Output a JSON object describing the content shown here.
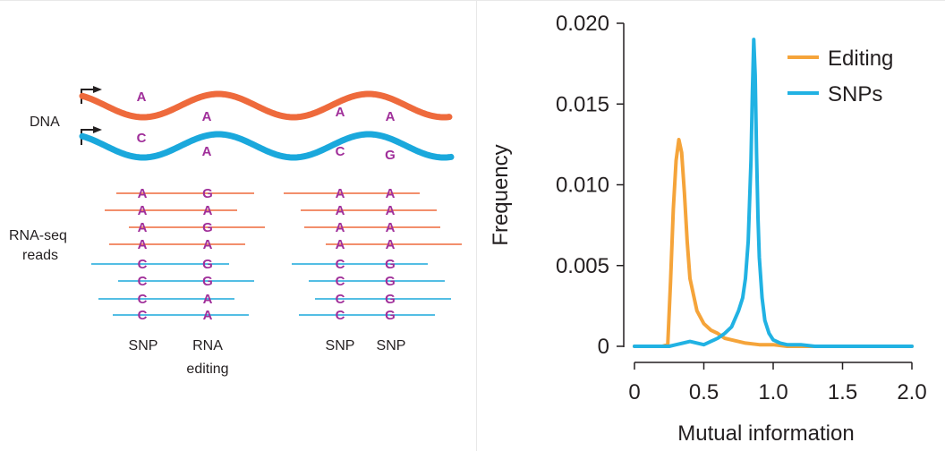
{
  "colors": {
    "orange": "#ee6a3c",
    "blue": "#1aa8dc",
    "purple": "#a02f9a",
    "editing_curve": "#f5a43a",
    "snp_curve": "#21b2e3",
    "text": "#231f20"
  },
  "diagram": {
    "dna_label": "DNA",
    "rnaseq_label_line1": "RNA-seq",
    "rnaseq_label_line2": "reads",
    "strand1_bases": [
      "A",
      "A",
      "A",
      "A"
    ],
    "strand2_bases": [
      "C",
      "A",
      "C",
      "G"
    ],
    "left_group": {
      "col1": [
        "A",
        "A",
        "A",
        "A",
        "C",
        "C",
        "C",
        "C"
      ],
      "col2": [
        "G",
        "A",
        "G",
        "A",
        "G",
        "G",
        "A",
        "A"
      ]
    },
    "right_group": {
      "col1": [
        "A",
        "A",
        "A",
        "A",
        "C",
        "C",
        "C",
        "C"
      ],
      "col2": [
        "A",
        "A",
        "A",
        "A",
        "G",
        "G",
        "G",
        "G"
      ]
    },
    "bottom_labels": {
      "snp1": "SNP",
      "rna_line1": "RNA",
      "rna_line2": "editing",
      "snp2": "SNP",
      "snp3": "SNP"
    }
  },
  "chart_data": {
    "type": "line",
    "title": "",
    "xlabel": "Mutual information",
    "ylabel": "Frequency",
    "xlim": [
      0,
      2.0
    ],
    "ylim": [
      0,
      0.02
    ],
    "xticks": [
      "0",
      "0.5",
      "1.0",
      "1.5",
      "2.0"
    ],
    "yticks": [
      "0",
      "0.005",
      "0.010",
      "0.015",
      "0.020"
    ],
    "legend_position": "top-right",
    "grid": false,
    "series": [
      {
        "name": "Editing",
        "color": "#f5a43a",
        "x": [
          0.0,
          0.2,
          0.24,
          0.26,
          0.28,
          0.3,
          0.32,
          0.34,
          0.36,
          0.38,
          0.4,
          0.45,
          0.5,
          0.55,
          0.6,
          0.65,
          0.7,
          0.8,
          0.9,
          1.0,
          1.1,
          1.2,
          1.3,
          1.5,
          2.0
        ],
        "y": [
          0.0,
          0.0,
          0.0001,
          0.004,
          0.0085,
          0.0115,
          0.0128,
          0.012,
          0.0095,
          0.0065,
          0.0042,
          0.0022,
          0.0014,
          0.001,
          0.0008,
          0.0005,
          0.0004,
          0.0002,
          0.0001,
          0.0001,
          0.0,
          0.0,
          0.0,
          0.0,
          0.0
        ]
      },
      {
        "name": "SNPs",
        "color": "#21b2e3",
        "x": [
          0.0,
          0.25,
          0.3,
          0.4,
          0.5,
          0.55,
          0.6,
          0.65,
          0.7,
          0.75,
          0.78,
          0.8,
          0.82,
          0.84,
          0.85,
          0.86,
          0.87,
          0.88,
          0.89,
          0.9,
          0.92,
          0.94,
          0.97,
          1.0,
          1.05,
          1.1,
          1.2,
          1.3,
          1.5,
          2.0
        ],
        "y": [
          0.0,
          0.0,
          0.0001,
          0.0003,
          0.0001,
          0.0003,
          0.0005,
          0.0008,
          0.0012,
          0.0022,
          0.003,
          0.0042,
          0.0065,
          0.0115,
          0.0158,
          0.019,
          0.0168,
          0.012,
          0.008,
          0.0055,
          0.003,
          0.0016,
          0.0008,
          0.0004,
          0.0002,
          0.0001,
          0.0001,
          0.0,
          0.0,
          0.0
        ]
      }
    ]
  }
}
